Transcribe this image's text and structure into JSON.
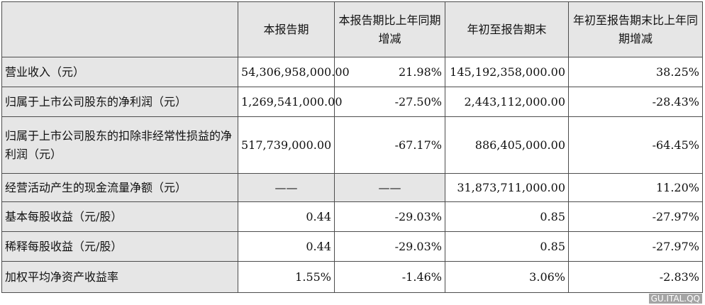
{
  "headers": {
    "item": "",
    "current_period": "本报告期",
    "current_change": "本报告期比上年同期增减",
    "ytd": "年初至报告期末",
    "ytd_change": "年初至报告期末比上年同期增减"
  },
  "rows": [
    {
      "label": "营业收入（元）",
      "current_period": "54,306,958,000.00",
      "current_change": "21.98%",
      "ytd": "145,192,358,000.00",
      "ytd_change": "38.25%"
    },
    {
      "label": "归属于上市公司股东的净利润（元）",
      "current_period": "1,269,541,000.00",
      "current_change": "-27.50%",
      "ytd": "2,443,112,000.00",
      "ytd_change": "-28.43%"
    },
    {
      "label": "归属于上市公司股东的扣除非经常性损益的净利润（元）",
      "current_period": "517,739,000.00",
      "current_change": "-67.17%",
      "ytd": "886,405,000.00",
      "ytd_change": "-64.45%"
    },
    {
      "label": "经营活动产生的现金流量净额（元）",
      "current_period": "——",
      "current_change": "——",
      "ytd": "31,873,711,000.00",
      "ytd_change": "11.20%"
    },
    {
      "label": "基本每股收益（元/股）",
      "current_period": "0.44",
      "current_change": "-29.03%",
      "ytd": "0.85",
      "ytd_change": "-27.97%"
    },
    {
      "label": "稀释每股收益（元/股）",
      "current_period": "0.44",
      "current_change": "-29.03%",
      "ytd": "0.85",
      "ytd_change": "-27.97%"
    },
    {
      "label": "加权平均净资产收益率",
      "current_period": "1.55%",
      "current_change": "-1.46%",
      "ytd": "3.06%",
      "ytd_change": "-2.83%"
    }
  ],
  "watermark": "GU.ITAL.QQ"
}
